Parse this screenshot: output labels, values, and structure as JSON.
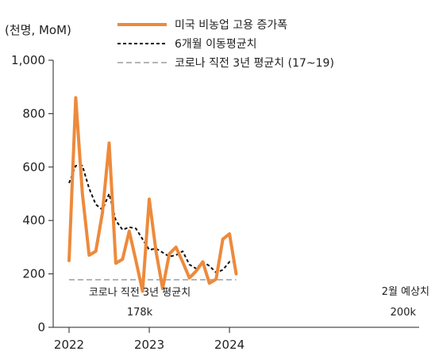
{
  "chart_data": {
    "type": "line",
    "unit_label": "(천명, MoM)",
    "y_ticks": [
      0,
      200,
      400,
      600,
      800,
      1000
    ],
    "y_tick_labels": [
      "0",
      "200",
      "400",
      "600",
      "800",
      "1,000"
    ],
    "ylim": [
      0,
      1000
    ],
    "x_ticks": [
      "2022",
      "2023",
      "2024"
    ],
    "x_start": "2022-01",
    "x_end": "2024-02",
    "grid": false,
    "legend_position": "top-right",
    "series": [
      {
        "name": "미국 비농업 고용 증가폭",
        "color": "#ED8A3C",
        "style": "solid",
        "x": [
          "2022-01",
          "2022-02",
          "2022-03",
          "2022-04",
          "2022-05",
          "2022-06",
          "2022-07",
          "2022-08",
          "2022-09",
          "2022-10",
          "2022-11",
          "2022-12",
          "2023-01",
          "2023-02",
          "2023-03",
          "2023-04",
          "2023-05",
          "2023-06",
          "2023-07",
          "2023-08",
          "2023-09",
          "2023-10",
          "2023-11",
          "2023-12",
          "2024-01",
          "2024-02"
        ],
        "values": [
          250,
          860,
          500,
          270,
          285,
          430,
          690,
          240,
          255,
          360,
          250,
          135,
          480,
          285,
          145,
          275,
          300,
          245,
          185,
          210,
          245,
          165,
          180,
          330,
          350,
          200
        ]
      },
      {
        "name": "6개월 이동평균치",
        "color": "#111111",
        "style": "dotted",
        "x": [
          "2022-01",
          "2022-02",
          "2022-03",
          "2022-04",
          "2022-05",
          "2022-06",
          "2022-07",
          "2022-08",
          "2022-09",
          "2022-10",
          "2022-11",
          "2022-12",
          "2023-01",
          "2023-02",
          "2023-03",
          "2023-04",
          "2023-05",
          "2023-06",
          "2023-07",
          "2023-08",
          "2023-09",
          "2023-10",
          "2023-11",
          "2023-12",
          "2024-01",
          "2024-02"
        ],
        "values": [
          540,
          605,
          605,
          520,
          460,
          440,
          500,
          400,
          365,
          375,
          370,
          330,
          290,
          295,
          280,
          265,
          270,
          285,
          235,
          220,
          245,
          230,
          205,
          215,
          245,
          245
        ]
      },
      {
        "name": "코로나 직전 3년 평균치 (17~19)",
        "color": "#B5B5B5",
        "style": "dashed",
        "x": [
          "2022-01",
          "2024-02"
        ],
        "values": [
          178,
          178
        ]
      }
    ],
    "annotations": [
      {
        "label": "코로나 직전 3년 평균치",
        "value_label": "178k",
        "x": "2022-08",
        "y": 178
      },
      {
        "label": "2월 예상치",
        "value_label": "200k",
        "x": "2024-02",
        "y": 200
      }
    ]
  }
}
